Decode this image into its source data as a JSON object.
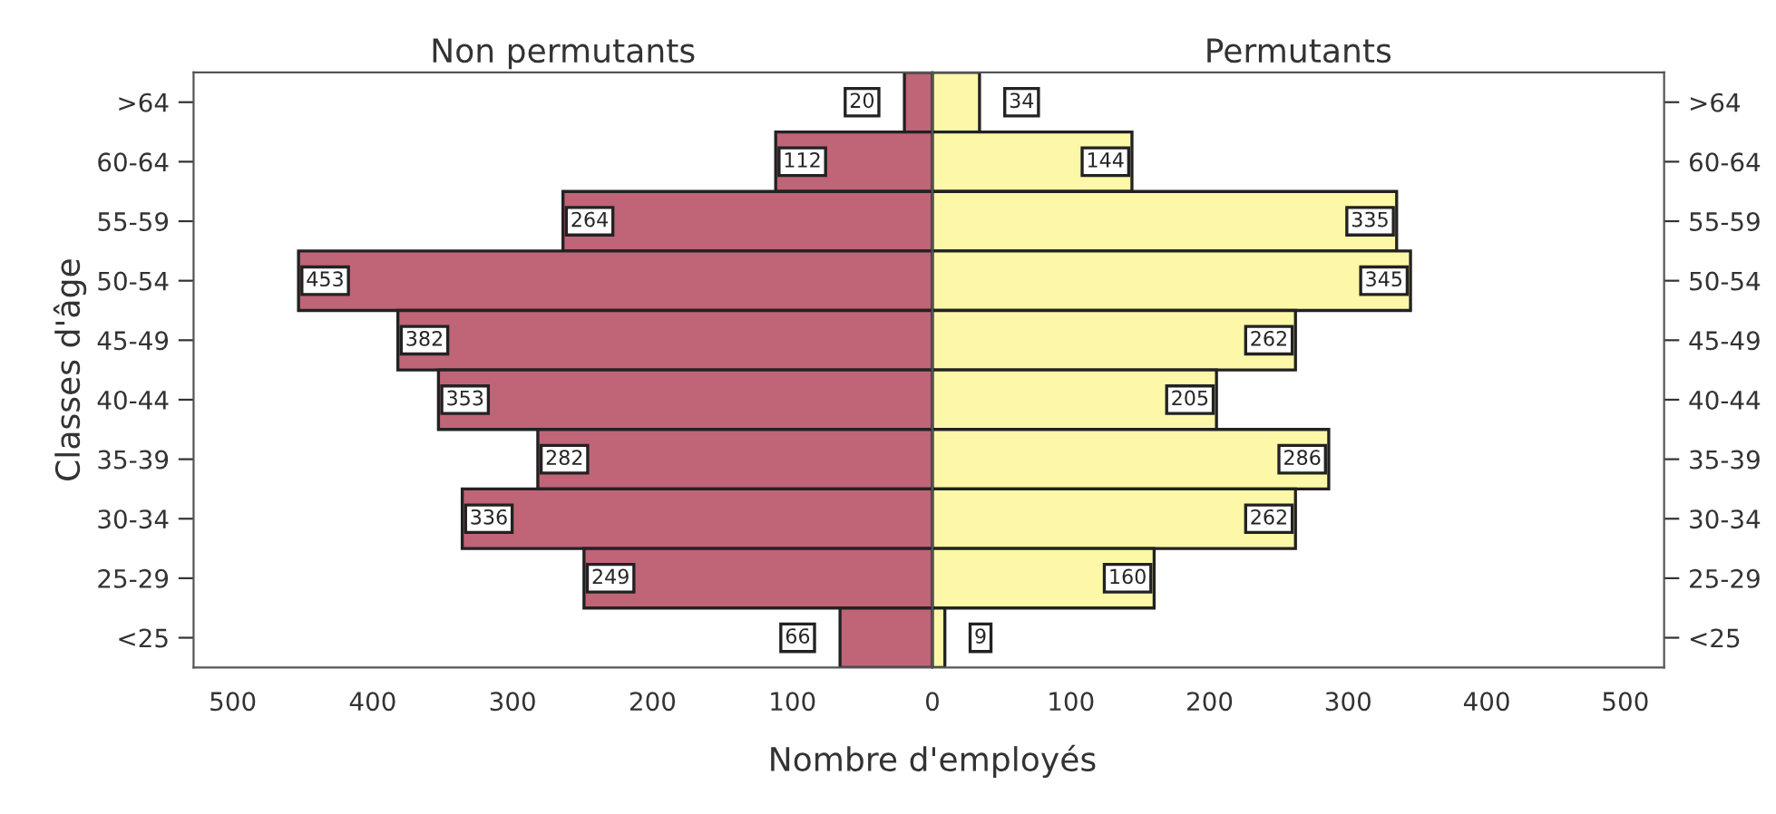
{
  "chart_data": [
    {
      "type": "bar",
      "orientation": "horizontal",
      "title": "Non permutants",
      "ylabel": "Classes d'âge",
      "xlabel": "Nombre d'employés",
      "categories": [
        ">64",
        "60-64",
        "55-59",
        "50-54",
        "45-49",
        "40-44",
        "35-39",
        "30-34",
        "25-29",
        "<25"
      ],
      "values": [
        20,
        112,
        264,
        453,
        382,
        353,
        282,
        336,
        249,
        66
      ],
      "color": "#c06478",
      "xlim": [
        528,
        0
      ],
      "xticks": [
        500,
        400,
        300,
        200,
        100
      ],
      "data_labels": true,
      "grid": false,
      "legend": false
    },
    {
      "type": "bar",
      "orientation": "horizontal",
      "title": "Permutants",
      "categories": [
        ">64",
        "60-64",
        "55-59",
        "50-54",
        "45-49",
        "40-44",
        "35-39",
        "30-34",
        "25-29",
        "<25"
      ],
      "values": [
        34,
        144,
        335,
        345,
        262,
        205,
        286,
        262,
        160,
        9
      ],
      "color": "#fdf8a8",
      "xlim": [
        0,
        528
      ],
      "xticks": [
        0,
        100,
        200,
        300,
        400,
        500
      ],
      "data_labels": true,
      "grid": false,
      "legend": false
    }
  ]
}
